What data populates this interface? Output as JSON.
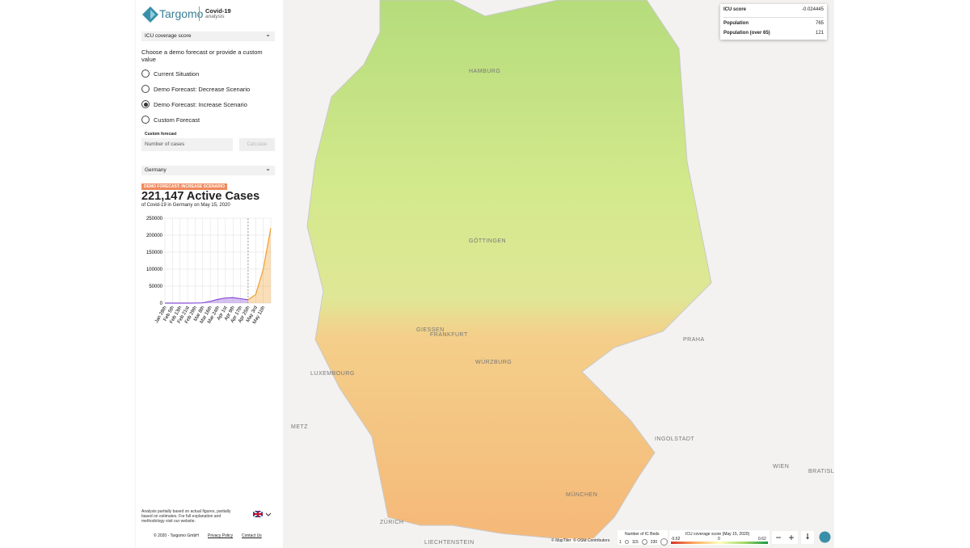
{
  "header": {
    "logo": "Targomo",
    "product": "Covid-19",
    "product_sub": "analysis"
  },
  "sidebar": {
    "score_select": "ICU coverage score",
    "prompt": "Choose a demo forecast or provide a custom value",
    "options": [
      {
        "label": "Current Situation",
        "selected": false
      },
      {
        "label": "Demo Forecast: Decrease Scenario",
        "selected": false
      },
      {
        "label": "Demo Forecast: Increase Scenario",
        "selected": true
      },
      {
        "label": "Custom Forecast",
        "selected": false
      }
    ],
    "custom_label": "Custom forecast",
    "input_placeholder": "Number of cases",
    "button": "Calculate",
    "region_select": "Germany",
    "badge": "DEMO FORECAST: INCREASE SCENARIO",
    "headline": "221,147 Active Cases",
    "subline": "of Covid-19 in Germany on May 15, 2020",
    "footer_note": "Analysis partially based on actual figures, partially based on estimates. For full explanation and methodology visit our website.",
    "copyright": "© 2020 - Targomo GmbH",
    "privacy": "Privacy Policy",
    "contact": "Contact Us"
  },
  "chart": {
    "type": "line",
    "categories": [
      "Jan 28th",
      "Feb 5th",
      "Feb 13th",
      "Feb 21st",
      "Feb 29th",
      "Mar 8th",
      "Mar 16th",
      "Mar 24th",
      "Apr 1st",
      "Apr 9th",
      "Apr 17th",
      "Apr 25th",
      "May 3rd",
      "May 11th",
      null
    ],
    "series": [
      {
        "color": "#8a4fd6",
        "values": [
          0,
          0,
          0,
          0,
          100,
          800,
          5000,
          11000,
          15000,
          16000,
          13000,
          10000,
          null,
          null,
          null
        ]
      },
      {
        "color": "#f0a030",
        "values": [
          null,
          null,
          null,
          null,
          null,
          null,
          null,
          null,
          null,
          null,
          null,
          10000,
          25000,
          100000,
          221147
        ]
      }
    ],
    "ylim": [
      0,
      250000
    ],
    "yticks": [
      0,
      50000,
      100000,
      150000,
      200000,
      250000
    ]
  },
  "map": {
    "tooltip": {
      "title": "ICU score",
      "score": -0.024445,
      "rows": [
        {
          "label": "Population",
          "value": 765
        },
        {
          "label": "Population (over 65)",
          "value": 121
        }
      ]
    },
    "cities": [
      {
        "name": "HAMBURG"
      },
      {
        "name": "GÖTTINGEN"
      },
      {
        "name": "GIESSEN"
      },
      {
        "name": "FRANKFURT"
      },
      {
        "name": "WÜRZBURG"
      },
      {
        "name": "INGOLSTADT"
      },
      {
        "name": "MÜNCHEN"
      },
      {
        "name": "LUXEMBOURG"
      },
      {
        "name": "METZ"
      },
      {
        "name": "ZÜRICH"
      },
      {
        "name": "LIECHTENSTEIN"
      },
      {
        "name": "PRAHA"
      },
      {
        "name": "WIEN"
      },
      {
        "name": "BRATISLA"
      }
    ],
    "attribution": [
      "© MapTiler",
      "© OSM Contributors"
    ],
    "legend_beds": {
      "title": "Number of IC Beds",
      "ticks": [
        1,
        115,
        230
      ]
    },
    "legend_score": {
      "title": "ICU coverage score (May 15, 2020)",
      "ticks": [
        -0.62,
        0,
        0.62
      ]
    }
  }
}
